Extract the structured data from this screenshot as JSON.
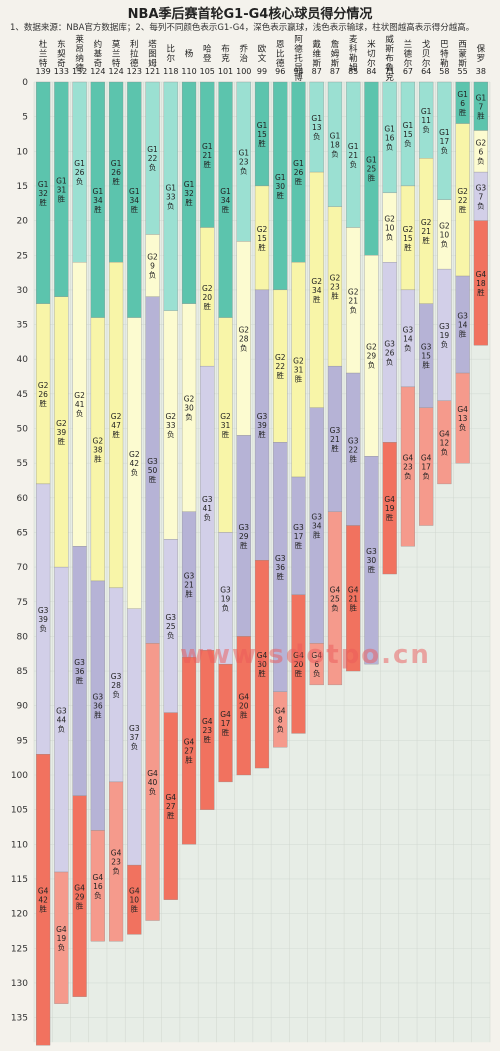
{
  "chart_data": {
    "type": "bar",
    "title": "NBA季后赛首轮G1-G4核心球员得分情况",
    "note": "1、数据来源：NBA官方数据库；2、每列不同颜色表示G1-G4，深色表示赢球，浅色表示输球，柱状图越高表示得分越高。",
    "ylim": [
      0,
      140
    ],
    "yticks": [
      0,
      5,
      10,
      15,
      20,
      25,
      30,
      35,
      40,
      45,
      50,
      55,
      60,
      65,
      70,
      75,
      80,
      85,
      90,
      95,
      100,
      105,
      110,
      115,
      120,
      125,
      130,
      135
    ],
    "grid": true,
    "colors": {
      "G1": {
        "win": "#5cc4ad",
        "lose": "#9be0d2"
      },
      "G2": {
        "win": "#f8f5a8",
        "lose": "#fcfbd0"
      },
      "G3": {
        "win": "#b6b3d6",
        "lose": "#d2cfe8"
      },
      "G4": {
        "win": "#f1725f",
        "lose": "#f59a8c"
      }
    },
    "players": [
      {
        "name": "杜兰特",
        "total": "139",
        "games": [
          {
            "g": "G1",
            "pts": 32,
            "res": "胜"
          },
          {
            "g": "G2",
            "pts": 26,
            "res": "胜"
          },
          {
            "g": "G3",
            "pts": 39,
            "res": "负"
          },
          {
            "g": "G4",
            "pts": 42,
            "res": "胜"
          }
        ]
      },
      {
        "name": "东契奇",
        "total": "133",
        "games": [
          {
            "g": "G1",
            "pts": 31,
            "res": "胜"
          },
          {
            "g": "G2",
            "pts": 39,
            "res": "胜"
          },
          {
            "g": "G3",
            "pts": 44,
            "res": "负"
          },
          {
            "g": "G4",
            "pts": 19,
            "res": "负"
          }
        ]
      },
      {
        "name": "莱昂纳德",
        "total": "132",
        "games": [
          {
            "g": "G1",
            "pts": 26,
            "res": "负"
          },
          {
            "g": "G2",
            "pts": 41,
            "res": "负"
          },
          {
            "g": "G3",
            "pts": 36,
            "res": "胜"
          },
          {
            "g": "G4",
            "pts": 29,
            "res": "胜"
          }
        ]
      },
      {
        "name": "约基奇",
        "total": "124",
        "games": [
          {
            "g": "G1",
            "pts": 34,
            "res": "胜"
          },
          {
            "g": "G2",
            "pts": 38,
            "res": "胜"
          },
          {
            "g": "G3",
            "pts": 36,
            "res": "胜"
          },
          {
            "g": "G4",
            "pts": 16,
            "res": "负"
          }
        ]
      },
      {
        "name": "莫兰特",
        "total": "124",
        "games": [
          {
            "g": "G1",
            "pts": 26,
            "res": "胜"
          },
          {
            "g": "G2",
            "pts": 47,
            "res": "胜"
          },
          {
            "g": "G3",
            "pts": 28,
            "res": "负"
          },
          {
            "g": "G4",
            "pts": 23,
            "res": "负"
          }
        ]
      },
      {
        "name": "利拉德",
        "total": "123",
        "games": [
          {
            "g": "G1",
            "pts": 34,
            "res": "胜"
          },
          {
            "g": "G2",
            "pts": 42,
            "res": "负"
          },
          {
            "g": "G3",
            "pts": 37,
            "res": "负"
          },
          {
            "g": "G4",
            "pts": 10,
            "res": "胜"
          }
        ]
      },
      {
        "name": "塔图姆",
        "total": "121",
        "games": [
          {
            "g": "G1",
            "pts": 22,
            "res": "负"
          },
          {
            "g": "G2",
            "pts": 9,
            "res": "负"
          },
          {
            "g": "G3",
            "pts": 50,
            "res": "胜"
          },
          {
            "g": "G4",
            "pts": 40,
            "res": "负"
          }
        ]
      },
      {
        "name": "比尔",
        "total": "118",
        "games": [
          {
            "g": "G1",
            "pts": 33,
            "res": "负"
          },
          {
            "g": "G2",
            "pts": 33,
            "res": "负"
          },
          {
            "g": "G3",
            "pts": 25,
            "res": "负"
          },
          {
            "g": "G4",
            "pts": 27,
            "res": "胜"
          }
        ]
      },
      {
        "name": "杨",
        "total": "110",
        "games": [
          {
            "g": "G1",
            "pts": 32,
            "res": "胜"
          },
          {
            "g": "G2",
            "pts": 30,
            "res": "负"
          },
          {
            "g": "G3",
            "pts": 21,
            "res": "胜"
          },
          {
            "g": "G4",
            "pts": 27,
            "res": "胜"
          }
        ]
      },
      {
        "name": "哈登",
        "total": "105",
        "games": [
          {
            "g": "G1",
            "pts": 21,
            "res": "胜"
          },
          {
            "g": "G2",
            "pts": 20,
            "res": "胜"
          },
          {
            "g": "G3",
            "pts": 41,
            "res": "负"
          },
          {
            "g": "G4",
            "pts": 23,
            "res": "胜"
          }
        ]
      },
      {
        "name": "布克",
        "total": "101",
        "games": [
          {
            "g": "G1",
            "pts": 34,
            "res": "胜"
          },
          {
            "g": "G2",
            "pts": 31,
            "res": "胜"
          },
          {
            "g": "G3",
            "pts": 19,
            "res": "负"
          },
          {
            "g": "G4",
            "pts": 17,
            "res": "胜"
          }
        ]
      },
      {
        "name": "乔治",
        "total": "100",
        "games": [
          {
            "g": "G1",
            "pts": 23,
            "res": "负"
          },
          {
            "g": "G2",
            "pts": 28,
            "res": "负"
          },
          {
            "g": "G3",
            "pts": 29,
            "res": "胜"
          },
          {
            "g": "G4",
            "pts": 20,
            "res": "胜"
          }
        ]
      },
      {
        "name": "欧文",
        "total": "99",
        "games": [
          {
            "g": "G1",
            "pts": 15,
            "res": "胜"
          },
          {
            "g": "G2",
            "pts": 15,
            "res": "胜"
          },
          {
            "g": "G3",
            "pts": 39,
            "res": "胜"
          },
          {
            "g": "G4",
            "pts": 30,
            "res": "胜"
          }
        ]
      },
      {
        "name": "恩比德",
        "total": "96",
        "games": [
          {
            "g": "G1",
            "pts": 30,
            "res": "胜"
          },
          {
            "g": "G2",
            "pts": 22,
            "res": "胜"
          },
          {
            "g": "G3",
            "pts": 36,
            "res": "胜"
          },
          {
            "g": "G4",
            "pts": 8,
            "res": "负"
          }
        ]
      },
      {
        "name": "阿德托昆博",
        "total": "94",
        "games": [
          {
            "g": "G1",
            "pts": 26,
            "res": "胜"
          },
          {
            "g": "G2",
            "pts": 31,
            "res": "胜"
          },
          {
            "g": "G3",
            "pts": 17,
            "res": "胜"
          },
          {
            "g": "G4",
            "pts": 20,
            "res": "胜"
          }
        ]
      },
      {
        "name": "戴维斯",
        "total": "87",
        "games": [
          {
            "g": "G1",
            "pts": 13,
            "res": "负"
          },
          {
            "g": "G2",
            "pts": 34,
            "res": "胜"
          },
          {
            "g": "G3",
            "pts": 34,
            "res": "胜"
          },
          {
            "g": "G4",
            "pts": 6,
            "res": "负"
          }
        ]
      },
      {
        "name": "詹姆斯",
        "total": "87",
        "games": [
          {
            "g": "G1",
            "pts": 18,
            "res": "负"
          },
          {
            "g": "G2",
            "pts": 23,
            "res": "胜"
          },
          {
            "g": "G3",
            "pts": 21,
            "res": "胜"
          },
          {
            "g": "G4",
            "pts": 25,
            "res": "负"
          }
        ]
      },
      {
        "name": "麦科勒姆",
        "total": "85",
        "games": [
          {
            "g": "G1",
            "pts": 21,
            "res": "负"
          },
          {
            "g": "G2",
            "pts": 21,
            "res": "负"
          },
          {
            "g": "G3",
            "pts": 22,
            "res": "胜"
          },
          {
            "g": "G4",
            "pts": 21,
            "res": "胜"
          }
        ]
      },
      {
        "name": "米切尔",
        "total": "84",
        "games": [
          {
            "g": "G1",
            "pts": 25,
            "res": "胜"
          },
          {
            "g": "G2",
            "pts": 29,
            "res": "负"
          },
          {
            "g": "G3",
            "pts": 30,
            "res": "胜"
          }
        ]
      },
      {
        "name": "威斯布鲁克",
        "total": "71",
        "games": [
          {
            "g": "G1",
            "pts": 16,
            "res": "负"
          },
          {
            "g": "G2",
            "pts": 10,
            "res": "负"
          },
          {
            "g": "G3",
            "pts": 26,
            "res": "负"
          },
          {
            "g": "G4",
            "pts": 19,
            "res": "胜"
          }
        ]
      },
      {
        "name": "兰德尔",
        "total": "67",
        "games": [
          {
            "g": "G1",
            "pts": 15,
            "res": "负"
          },
          {
            "g": "G2",
            "pts": 15,
            "res": "胜"
          },
          {
            "g": "G3",
            "pts": 14,
            "res": "负"
          },
          {
            "g": "G4",
            "pts": 23,
            "res": "负"
          }
        ]
      },
      {
        "name": "戈贝尔",
        "total": "64",
        "games": [
          {
            "g": "G1",
            "pts": 11,
            "res": "负"
          },
          {
            "g": "G2",
            "pts": 21,
            "res": "胜"
          },
          {
            "g": "G3",
            "pts": 15,
            "res": "胜"
          },
          {
            "g": "G4",
            "pts": 17,
            "res": "负"
          }
        ]
      },
      {
        "name": "巴特勒",
        "total": "58",
        "games": [
          {
            "g": "G1",
            "pts": 17,
            "res": "负"
          },
          {
            "g": "G2",
            "pts": 10,
            "res": "负"
          },
          {
            "g": "G3",
            "pts": 19,
            "res": "负"
          },
          {
            "g": "G4",
            "pts": 12,
            "res": "负"
          }
        ]
      },
      {
        "name": "西蒙斯",
        "total": "55",
        "games": [
          {
            "g": "G1",
            "pts": 6,
            "res": "胜"
          },
          {
            "g": "G2",
            "pts": 22,
            "res": "胜"
          },
          {
            "g": "G3",
            "pts": 14,
            "res": "胜"
          },
          {
            "g": "G4",
            "pts": 13,
            "res": "负"
          }
        ]
      },
      {
        "name": "保罗",
        "total": "38",
        "games": [
          {
            "g": "G1",
            "pts": 7,
            "res": "胜"
          },
          {
            "g": "G2",
            "pts": 6,
            "res": "负"
          },
          {
            "g": "G3",
            "pts": 7,
            "res": "负"
          },
          {
            "g": "G4",
            "pts": 18,
            "res": "胜"
          }
        ]
      }
    ]
  },
  "watermark": "www.sdotpo.cn"
}
